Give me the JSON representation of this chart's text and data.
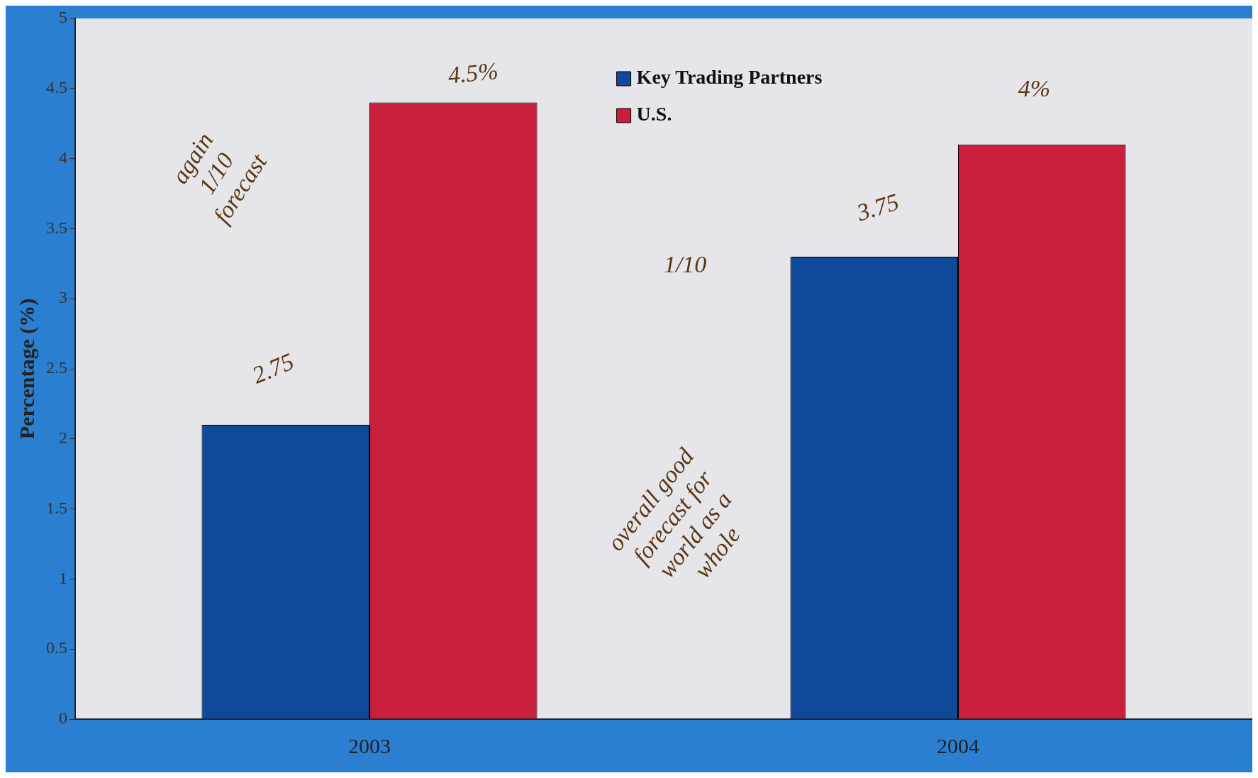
{
  "chart_data": {
    "type": "bar",
    "ylabel": "Percentage (%)",
    "categories": [
      "2003",
      "2004"
    ],
    "series": [
      {
        "name": "Key Trading Partners",
        "color": "#0f4a9a",
        "values": [
          2.1,
          3.3
        ]
      },
      {
        "name": "U.S.",
        "color": "#c71f3c",
        "values": [
          4.4,
          4.1
        ]
      }
    ],
    "ylim": [
      0,
      5
    ],
    "yticks": [
      0,
      0.5,
      1,
      1.5,
      2,
      2.5,
      3,
      3.5,
      4,
      4.5,
      5
    ],
    "legend": "top",
    "annotations": [
      "2.75",
      "4.5%",
      "3.75",
      "4%",
      "again 1/10 forecast",
      "1/10",
      "overall good forecast for world as a whole"
    ]
  }
}
